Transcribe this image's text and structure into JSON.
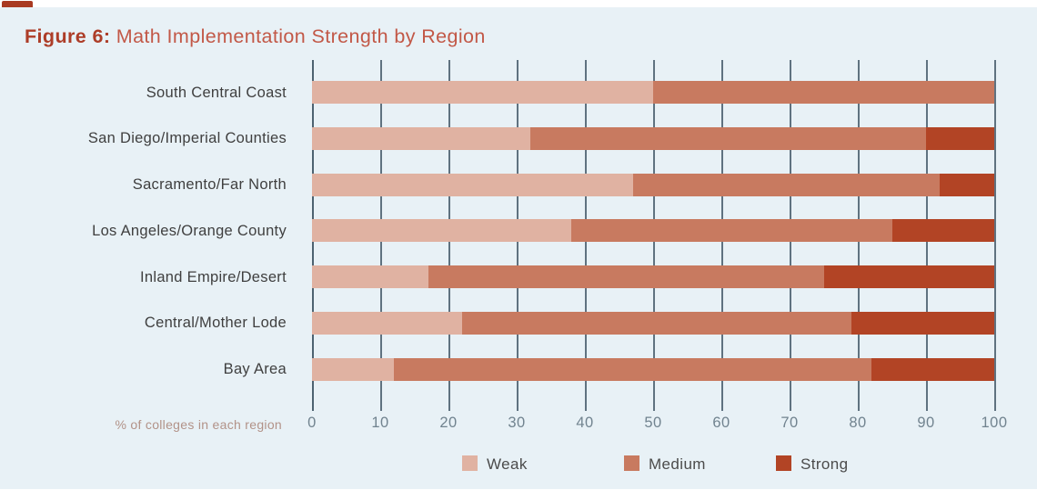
{
  "figure": {
    "label": "Figure 6:",
    "title": " Math Implementation Strength by Region"
  },
  "chart_data": {
    "type": "bar",
    "orientation": "horizontal",
    "stacked": true,
    "title": "Figure 6: Math Implementation Strength by Region",
    "xlabel": "% of colleges in each region",
    "xlim": [
      0,
      100
    ],
    "x_ticks": [
      "0",
      "10",
      "20",
      "30",
      "40",
      "50",
      "60",
      "70",
      "80",
      "90",
      "100"
    ],
    "grid": true,
    "legend_position": "bottom",
    "categories": [
      "South Central Coast",
      "San Diego/Imperial Counties",
      "Sacramento/Far North",
      "Los Angeles/Orange County",
      "Inland Empire/Desert",
      "Central/Mother Lode",
      "Bay Area"
    ],
    "series": [
      {
        "name": "Weak",
        "color": "#e0b2a2",
        "values": [
          50,
          32,
          47,
          38,
          17,
          22,
          12
        ]
      },
      {
        "name": "Medium",
        "color": "#c87a60",
        "values": [
          50,
          58,
          45,
          47,
          58,
          57,
          70
        ]
      },
      {
        "name": "Strong",
        "color": "#b24425",
        "values": [
          0,
          10,
          8,
          15,
          25,
          21,
          18
        ]
      }
    ],
    "colors": {
      "background": "#e8f1f6",
      "gridline": "#5f7280",
      "axis_line": "#4d6270",
      "title_label": "#ad3d28",
      "title_text": "#c25847",
      "category_label": "#3f3f3f",
      "tick_label": "#71838f",
      "xlabel_text": "#b29288",
      "legend_text": "#4b4b4b"
    }
  }
}
